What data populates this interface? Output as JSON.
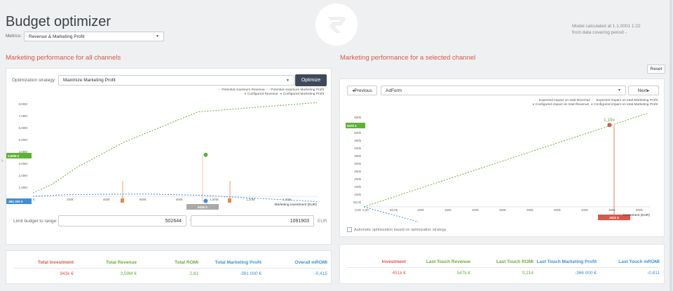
{
  "app": {
    "title": "Budget optimizer"
  },
  "metrics": {
    "label": "Metrics:",
    "selected": "Revenue & Marketing Profit"
  },
  "model_info": {
    "line1": "Model calculated at 1.1.0001 1:22",
    "line2": "from data covering period -"
  },
  "left": {
    "section_title": "Marketing performance for all channels",
    "strategy_label": "Optimization strategy:",
    "strategy_selected": "Maximize Marketing Profit",
    "optimize_label": "Optimize",
    "legend": {
      "potential_revenue": "Potential maximum Revenue",
      "potential_profit": "Potential maximum Marketing Profit",
      "configured_revenue": "Configured Revenue",
      "configured_profit": "Configured Marketing Profit"
    },
    "y_ticks": [
      "8,00M",
      "7,00M",
      "6,00M",
      "5,00M",
      "4,00M",
      "3,00M",
      "2,00M",
      "1,00M",
      "0,00"
    ],
    "x_ticks": [
      "0",
      "200k",
      "400k",
      "600k",
      "800k",
      "1,00M",
      "1,20M",
      "1,40M"
    ],
    "x_label": "Marketing Investment (EUR)",
    "flag_revenue": "3,59M €",
    "flag_profit": "-391 000 €",
    "flag_invest": "943k €",
    "limit_label": "Limit budget to range:",
    "range_min": "502644",
    "range_dash": "-",
    "range_max": "1091903",
    "range_unit": "EUR"
  },
  "right": {
    "section_title": "Marketing performance for a selected channel",
    "reset_label": "Reset",
    "prev_label": "Previous",
    "next_label": "Next",
    "channel_selected": "AdForm",
    "legend": {
      "expected_revenue": "Expected impact on total Revenue",
      "expected_profit": "Expected impact on total Marketing Profit",
      "configured_revenue": "Configured impact on total Revenue",
      "configured_profit": "Configured impact on total Marketing Profit"
    },
    "y_ticks": [
      "600k",
      "550k",
      "500k",
      "450k",
      "400k",
      "350k",
      "300k",
      "250k",
      "200k",
      "150k",
      "100k",
      "50,0k",
      "0,00"
    ],
    "x_ticks": [
      "0,00",
      "50,0k",
      "100k",
      "150k",
      "200k",
      "250k",
      "300k",
      "350k",
      "400k",
      "450k",
      "500k"
    ],
    "x_label": "Investment (EUR)",
    "flag_revenue": "547k €",
    "flag_invest": "451k €",
    "point_label": "1,19x",
    "auto_label": "Automatic optimization based on optimization strategy"
  },
  "summary_left": {
    "headers": [
      "Total Investment",
      "Total Revenue",
      "Total ROMI",
      "Total Marketing Profit",
      "Overall mROMI"
    ],
    "values": [
      "943k €",
      "3,59M €",
      "2,81",
      "-391 000 €",
      "-0,415"
    ]
  },
  "summary_right": {
    "headers": [
      "Investment",
      "Last Touch Revenue",
      "Last Touch ROMI",
      "Last Touch Marketing Profit",
      "Last Touch mROMI"
    ],
    "values": [
      "451k €",
      "547k €",
      "0,214",
      "-366 000 €",
      "-0,811"
    ]
  },
  "colors": {
    "red": "#d9574a",
    "green": "#6aab3a",
    "blue": "#3d8fd6",
    "orange": "#e8874a",
    "dark": "#3d4a5a"
  },
  "chart_data": [
    {
      "type": "line",
      "title": "Marketing performance for all channels",
      "xlabel": "Marketing Investment (EUR)",
      "ylabel": "",
      "xlim": [
        0,
        1550000
      ],
      "ylim": [
        0,
        8000000
      ],
      "series": [
        {
          "name": "Potential maximum Revenue",
          "x": [
            0,
            100000,
            250000,
            500000,
            900000,
            1550000
          ],
          "y": [
            300000,
            1000000,
            2600000,
            4700000,
            7300000,
            8100000
          ]
        },
        {
          "name": "Potential maximum Marketing Profit",
          "x": [
            0,
            200000,
            600000,
            900000,
            1200000,
            1550000
          ],
          "y": [
            0,
            150000,
            200000,
            100000,
            -150000,
            -450000
          ]
        },
        {
          "name": "Configured Revenue",
          "x": [
            943000
          ],
          "y": [
            3590000
          ]
        },
        {
          "name": "Configured Marketing Profit",
          "x": [
            943000
          ],
          "y": [
            -391000
          ]
        }
      ],
      "limits": [
        502644,
        1091903
      ]
    },
    {
      "type": "line",
      "title": "Marketing performance for a selected channel",
      "xlabel": "Investment (EUR)",
      "ylabel": "",
      "xlim": [
        0,
        520000
      ],
      "ylim": [
        0,
        600000
      ],
      "series": [
        {
          "name": "Expected impact on total Revenue",
          "x": [
            0,
            520000
          ],
          "y": [
            0,
            625000
          ]
        },
        {
          "name": "Expected impact on total Marketing Profit",
          "x": [
            0,
            100000
          ],
          "y": [
            0,
            -100000
          ]
        },
        {
          "name": "Configured impact on total Revenue",
          "x": [
            451000
          ],
          "y": [
            547000
          ]
        }
      ]
    }
  ]
}
